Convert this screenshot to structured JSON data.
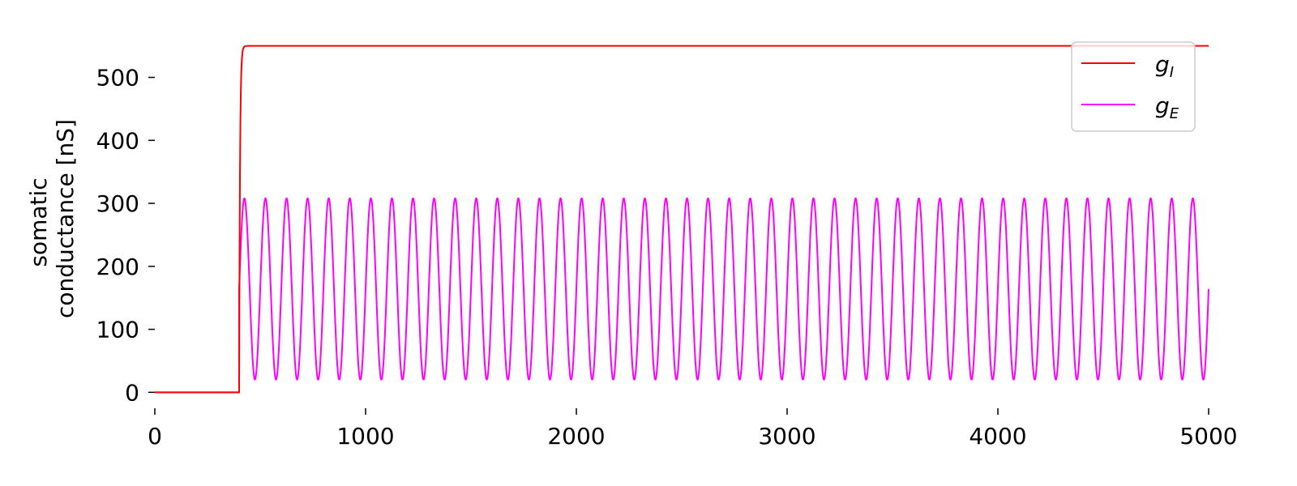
{
  "chart_data": {
    "type": "line",
    "title": "",
    "xlabel": "",
    "ylabel_lines": [
      "somatic",
      "conductance [nS]"
    ],
    "xlim": [
      0,
      5000
    ],
    "ylim": [
      -15,
      565
    ],
    "x_ticks": [
      0,
      1000,
      2000,
      3000,
      4000,
      5000
    ],
    "y_ticks": [
      0,
      100,
      200,
      300,
      400,
      500
    ],
    "grid": false,
    "legend_position": "top-right",
    "series": [
      {
        "name_main": "g",
        "name_sub": "I",
        "color": "#ff0000",
        "model": "step_rise",
        "onset": 400,
        "rise_time_constant": 4,
        "baseline": 0,
        "plateau": 550
      },
      {
        "name_main": "g",
        "name_sub": "E",
        "color": "#ff00ff",
        "model": "step_sinusoid",
        "onset": 400,
        "baseline": 0,
        "min": 20,
        "max": 308,
        "period": 100,
        "first_peak": 425
      }
    ]
  }
}
